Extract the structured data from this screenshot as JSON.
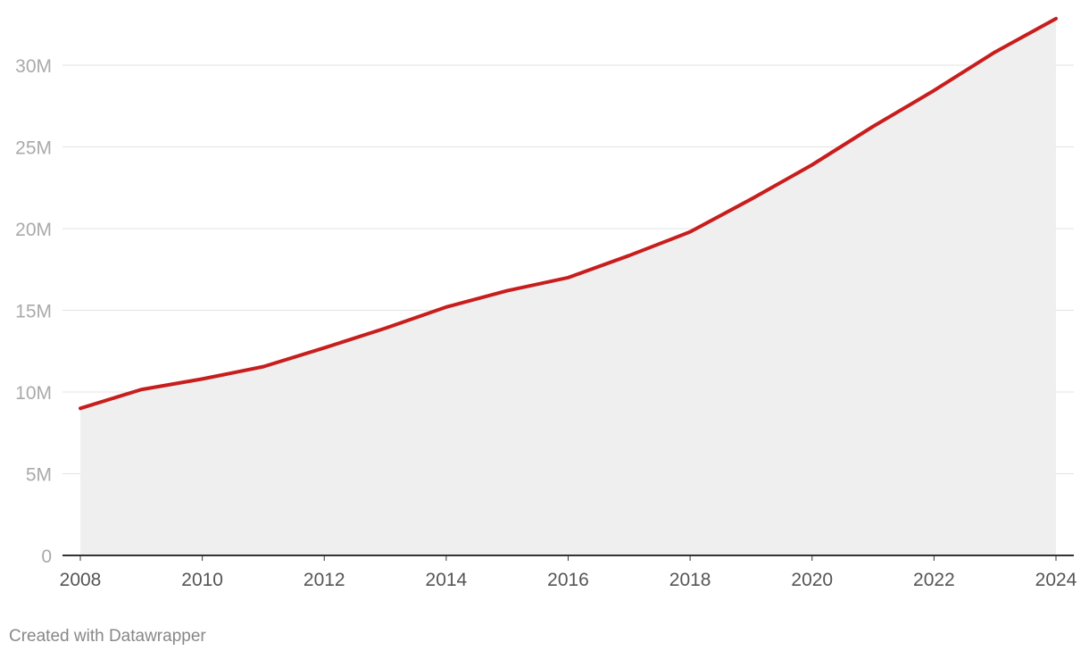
{
  "chart_data": {
    "type": "area",
    "title": "",
    "xlabel": "",
    "ylabel": "",
    "x": [
      2008,
      2009,
      2010,
      2011,
      2012,
      2013,
      2014,
      2015,
      2016,
      2017,
      2018,
      2019,
      2020,
      2021,
      2022,
      2023,
      2024
    ],
    "series": [
      {
        "values": [
          9000000,
          10150000,
          10800000,
          11550000,
          12700000,
          13900000,
          15200000,
          16200000,
          17000000,
          18350000,
          19800000,
          21800000,
          23900000,
          26250000,
          28450000,
          30800000,
          32850000
        ],
        "color": "#c71e1d",
        "fill": "#efefef"
      }
    ],
    "ylim": [
      0,
      33000000
    ],
    "xlim": [
      2008,
      2024
    ],
    "y_ticks": [
      {
        "value": 0,
        "label": "0"
      },
      {
        "value": 5000000,
        "label": "5M"
      },
      {
        "value": 10000000,
        "label": "10M"
      },
      {
        "value": 15000000,
        "label": "15M"
      },
      {
        "value": 20000000,
        "label": "20M"
      },
      {
        "value": 25000000,
        "label": "25M"
      },
      {
        "value": 30000000,
        "label": "30M"
      }
    ],
    "x_ticks": [
      {
        "value": 2008,
        "label": "2008"
      },
      {
        "value": 2010,
        "label": "2010"
      },
      {
        "value": 2012,
        "label": "2012"
      },
      {
        "value": 2014,
        "label": "2014"
      },
      {
        "value": 2016,
        "label": "2016"
      },
      {
        "value": 2018,
        "label": "2018"
      },
      {
        "value": 2020,
        "label": "2020"
      },
      {
        "value": 2022,
        "label": "2022"
      },
      {
        "value": 2024,
        "label": "2024"
      }
    ],
    "grid": true,
    "legend": "none"
  },
  "footer": {
    "credit": "Created with Datawrapper"
  }
}
